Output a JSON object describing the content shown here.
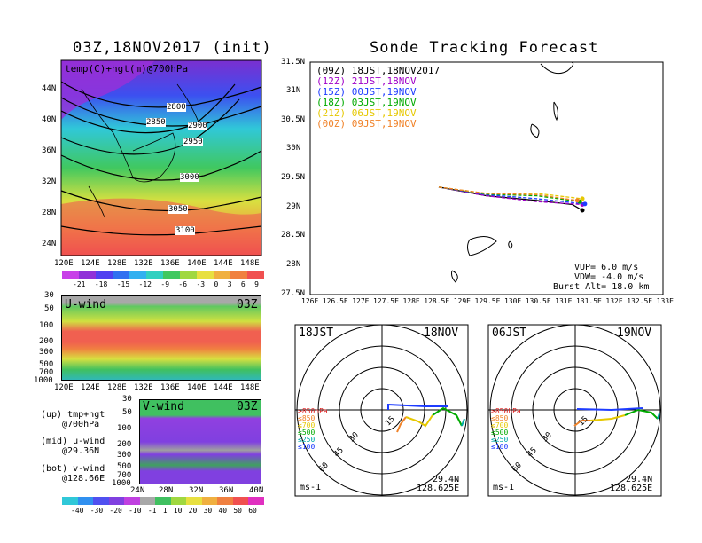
{
  "titles": {
    "left": "03Z,18NOV2017 (init)",
    "right": "Sonde Tracking Forecast"
  },
  "map_panel": {
    "label": "temp(C)+hgt(m)@700hPa",
    "lat_ticks": [
      "44N",
      "40N",
      "36N",
      "32N",
      "28N",
      "24N"
    ],
    "lon_ticks": [
      "120E",
      "124E",
      "128E",
      "132E",
      "136E",
      "140E",
      "144E",
      "148E"
    ],
    "contours": [
      "2800",
      "2850",
      "2900",
      "2950",
      "3000",
      "3050",
      "3100"
    ],
    "colorbar": [
      "-21",
      "-18",
      "-15",
      "-12",
      "-9",
      "-6",
      "-3",
      "0",
      "3",
      "6",
      "9"
    ]
  },
  "uwind_panel": {
    "label": "U-wind",
    "time": "03Z",
    "p_ticks": [
      "30",
      "50",
      "100",
      "200",
      "300",
      "500",
      "700",
      "1000"
    ],
    "lon_ticks": [
      "120E",
      "124E",
      "128E",
      "132E",
      "136E",
      "140E",
      "144E",
      "148E"
    ]
  },
  "vwind_panel": {
    "label": "V-wind",
    "time": "03Z",
    "p_ticks": [
      "30",
      "50",
      "100",
      "200",
      "300",
      "500",
      "700",
      "1000"
    ],
    "lat_ticks": [
      "24N",
      "28N",
      "32N",
      "36N",
      "40N"
    ],
    "colorbar": [
      "-40",
      "-30",
      "-20",
      "-10",
      "-1",
      "1",
      "10",
      "20",
      "30",
      "40",
      "50",
      "60"
    ]
  },
  "notes": {
    "up1": "(up) tmp+hgt",
    "up2": "@700hPa",
    "mid1": "(mid) u-wind",
    "mid2": "@29.36N",
    "bot1": "(bot) v-wind",
    "bot2": "@128.66E"
  },
  "track_panel": {
    "legend": [
      {
        "code": "(09Z)",
        "time": "18JST,18NOV2017",
        "color": "#000000"
      },
      {
        "code": "(12Z)",
        "time": "21JST,18NOV",
        "color": "#a000c8"
      },
      {
        "code": "(15Z)",
        "time": "00JST,19NOV",
        "color": "#1e3cff"
      },
      {
        "code": "(18Z)",
        "time": "03JST,19NOV",
        "color": "#00aa00"
      },
      {
        "code": "(21Z)",
        "time": "06JST,19NOV",
        "color": "#e6c800"
      },
      {
        "code": "(00Z)",
        "time": "09JST,19NOV",
        "color": "#f08228"
      }
    ],
    "lat_ticks": [
      "31.5N",
      "31N",
      "30.5N",
      "30N",
      "29.5N",
      "29N",
      "28.5N",
      "28N",
      "27.5N"
    ],
    "lon_ticks": [
      "126E",
      "126.5E",
      "127E",
      "127.5E",
      "128E",
      "128.5E",
      "129E",
      "129.5E",
      "130E",
      "130.5E",
      "131E",
      "131.5E",
      "132E",
      "132.5E",
      "133E"
    ],
    "vup": "VUP= 6.0 m/s",
    "vdw": "VDW= -4.0 m/s",
    "burst": "Burst Alt= 18.0 km"
  },
  "hodographs": [
    {
      "time": "18JST",
      "date": "18NOV",
      "lat": "29.4N",
      "lon": "128.625E",
      "unit": "ms-1",
      "rings": [
        "15",
        "30",
        "45",
        "60"
      ],
      "levels": [
        {
          "label": "≥850hPa",
          "color": "#e02020"
        },
        {
          "label": "≤850",
          "color": "#f08228"
        },
        {
          "label": "≤700",
          "color": "#e6c800"
        },
        {
          "label": "≤500",
          "color": "#00aa00"
        },
        {
          "label": "≤250",
          "color": "#00aaaa"
        },
        {
          "label": "≤100",
          "color": "#1e3cff"
        }
      ]
    },
    {
      "time": "06JST",
      "date": "19NOV",
      "lat": "29.4N",
      "lon": "128.625E",
      "unit": "ms-1",
      "rings": [
        "15",
        "30",
        "45",
        "60"
      ],
      "levels": [
        {
          "label": "≥850hPa",
          "color": "#e02020"
        },
        {
          "label": "≤850",
          "color": "#f08228"
        },
        {
          "label": "≤700",
          "color": "#e6c800"
        },
        {
          "label": "≤500",
          "color": "#00aa00"
        },
        {
          "label": "≤250",
          "color": "#00aaaa"
        },
        {
          "label": "≤100",
          "color": "#1e3cff"
        }
      ]
    }
  ],
  "chart_data": {
    "type": "line",
    "title": "Sonde Tracking Forecast",
    "xlim": [
      126,
      133
    ],
    "ylim": [
      27.5,
      31.5
    ],
    "series": [
      {
        "name": "(09Z) 18JST,18NOV2017",
        "color": "#000000",
        "points": [
          [
            128.55,
            29.35
          ],
          [
            129.5,
            29.2
          ],
          [
            130.5,
            29.12
          ],
          [
            131.2,
            29.05
          ],
          [
            131.4,
            28.95
          ]
        ]
      },
      {
        "name": "(12Z) 21JST,18NOV",
        "color": "#a000c8",
        "points": [
          [
            128.55,
            29.35
          ],
          [
            129.5,
            29.2
          ],
          [
            130.5,
            29.1
          ],
          [
            131.4,
            29.05
          ]
        ]
      },
      {
        "name": "(15Z) 00JST,19NOV",
        "color": "#1e3cff",
        "points": [
          [
            128.55,
            29.35
          ],
          [
            129.5,
            29.22
          ],
          [
            130.5,
            29.15
          ],
          [
            131.45,
            29.06
          ]
        ]
      },
      {
        "name": "(18Z) 03JST,19NOV",
        "color": "#00aa00",
        "points": [
          [
            128.55,
            29.35
          ],
          [
            129.5,
            29.23
          ],
          [
            130.5,
            29.2
          ],
          [
            131.35,
            29.1
          ]
        ]
      },
      {
        "name": "(21Z) 06JST,19NOV",
        "color": "#e6c800",
        "points": [
          [
            128.55,
            29.35
          ],
          [
            129.5,
            29.24
          ],
          [
            130.5,
            29.24
          ],
          [
            131.4,
            29.15
          ]
        ]
      },
      {
        "name": "(00Z) 09JST,19NOV",
        "color": "#f08228",
        "points": [
          [
            128.55,
            29.35
          ],
          [
            129.5,
            29.24
          ],
          [
            130.5,
            29.22
          ],
          [
            131.3,
            29.12
          ]
        ]
      }
    ]
  }
}
